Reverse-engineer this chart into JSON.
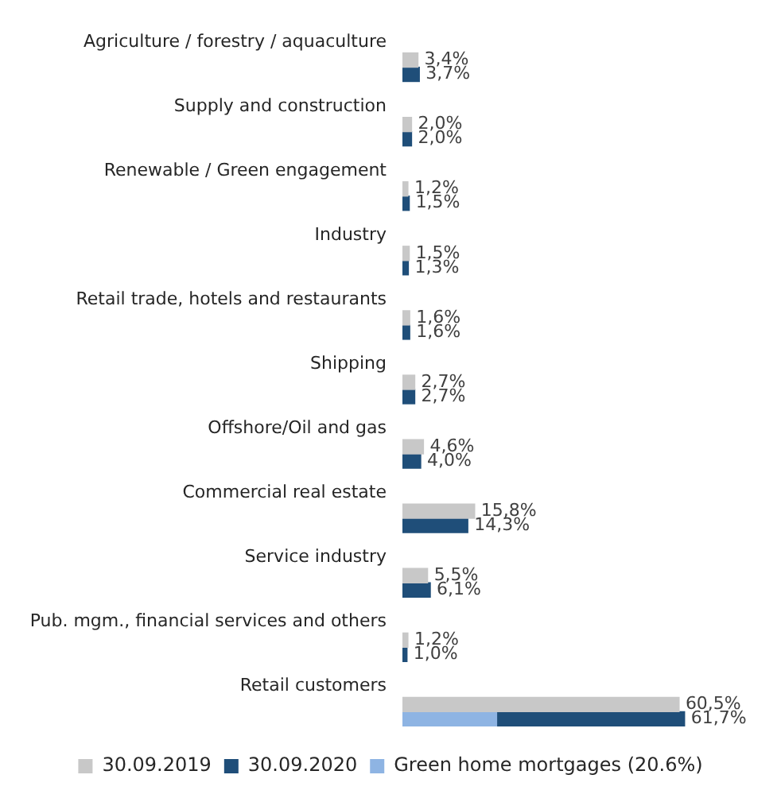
{
  "chart_data": {
    "type": "bar",
    "orientation": "horizontal",
    "categories": [
      "Agriculture / forestry / aquaculture",
      "Supply and construction",
      "Renewable / Green engagement",
      "Industry",
      "Retail trade, hotels and restaurants",
      "Shipping",
      "Offshore/Oil and gas",
      "Commercial real estate",
      "Service industry",
      "Pub. mgm., financial services and others",
      "Retail customers"
    ],
    "series": [
      {
        "name": "30.09.2019",
        "color": "#c8c8c8",
        "values": [
          3.4,
          2.0,
          1.2,
          1.5,
          1.6,
          2.7,
          4.6,
          15.8,
          5.5,
          1.2,
          60.5
        ],
        "value_labels": [
          "3,4%",
          "2,0%",
          "1,2%",
          "1,5%",
          "1,6%",
          "2,7%",
          "4,6%",
          "15,8%",
          "5,5%",
          "1,2%",
          "60,5%"
        ]
      },
      {
        "name": "30.09.2020",
        "color": "#1f4e79",
        "values": [
          3.7,
          2.0,
          1.5,
          1.3,
          1.6,
          2.7,
          4.0,
          14.3,
          6.1,
          1.0,
          61.7
        ],
        "value_labels": [
          "3,7%",
          "2,0%",
          "1,5%",
          "1,3%",
          "1,6%",
          "2,7%",
          "4,0%",
          "14,3%",
          "6,1%",
          "1,0%",
          "61,7%"
        ]
      },
      {
        "name": "Green home mortgages (20.6%)",
        "color": "#8eb4e3",
        "values": [
          null,
          null,
          null,
          null,
          null,
          null,
          null,
          null,
          null,
          null,
          20.6
        ]
      }
    ],
    "tick_labels": "y",
    "grid": false,
    "legend": "bottom"
  }
}
